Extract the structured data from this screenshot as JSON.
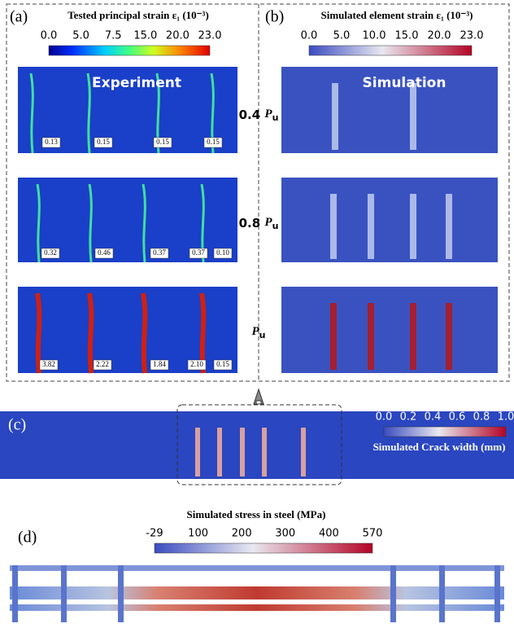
{
  "panel_a": {
    "label": "(a)",
    "colorbar_title": "Tested principal strain ε₁ (10⁻³)",
    "colorbar_ticks": [
      "0.0",
      "5.0",
      "7.5",
      "15.0",
      "20.0",
      "23.0"
    ],
    "heading": "Experiment",
    "crack_widths": [
      [
        "0.13",
        "0.15",
        "0.15",
        "0.15"
      ],
      [
        "0.32",
        "0.46",
        "0.37",
        "0.37",
        "0.10"
      ],
      [
        "3.82",
        "2.22",
        "1.84",
        "2.10",
        "0.15"
      ]
    ]
  },
  "load_levels": [
    {
      "factor": "0.4",
      "symbol": "P",
      "subscript": "u"
    },
    {
      "factor": "0.8",
      "symbol": "P",
      "subscript": "u"
    },
    {
      "symbol": "P",
      "subscript": "u"
    }
  ],
  "panel_b": {
    "label": "(b)",
    "colorbar_title": "Simulated element strain ε₁ (10⁻³)",
    "colorbar_ticks": [
      "0.0",
      "5.0",
      "10.0",
      "15.0",
      "20.0",
      "23.0"
    ],
    "heading": "Simulation"
  },
  "panel_c": {
    "label": "(c)",
    "colorbar_ticks": [
      "0.0",
      "0.2",
      "0.4",
      "0.6",
      "0.8",
      "1.0"
    ],
    "colorbar_title": "Simulated Crack width (mm)"
  },
  "panel_d": {
    "label": "(d)",
    "colorbar_title": "Simulated stress in steel (MPa)",
    "colorbar_ticks": [
      "-29",
      "100",
      "200",
      "300",
      "400",
      "570"
    ]
  }
}
